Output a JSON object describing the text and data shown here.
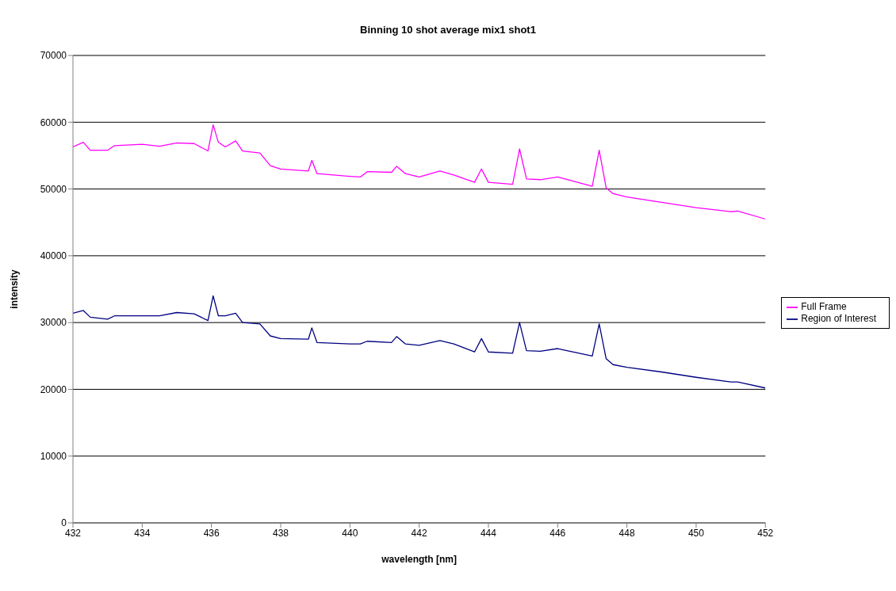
{
  "chart_data": {
    "type": "line",
    "title": "Binning 10 shot average mix1 shot1",
    "xlabel": "wavelength [nm]",
    "ylabel": "intensity",
    "xlim": [
      432,
      452
    ],
    "xticks": [
      432,
      434,
      436,
      438,
      440,
      442,
      444,
      446,
      448,
      450,
      452
    ],
    "ylim": [
      0,
      70000
    ],
    "yticks": [
      0,
      10000,
      20000,
      30000,
      40000,
      50000,
      60000,
      70000
    ],
    "grid": "y",
    "legend": "right",
    "marker": "none",
    "line_style": "solid",
    "x": [
      432.0,
      432.3,
      432.5,
      433.0,
      433.2,
      434.0,
      434.5,
      435.0,
      435.5,
      435.9,
      436.05,
      436.2,
      436.4,
      436.7,
      436.9,
      437.4,
      437.7,
      438.0,
      438.8,
      438.9,
      439.05,
      440.0,
      440.3,
      440.5,
      441.2,
      441.35,
      441.6,
      442.0,
      442.6,
      443.0,
      443.6,
      443.8,
      444.0,
      444.7,
      444.9,
      445.1,
      445.5,
      446.0,
      447.0,
      447.2,
      447.4,
      447.6,
      448.0,
      449.0,
      450.0,
      451.0,
      451.2,
      452.0
    ],
    "series": [
      {
        "name": "Region of Interest",
        "color": "#000080",
        "values": [
          31400,
          31800,
          30800,
          30500,
          31000,
          31000,
          31000,
          31500,
          31300,
          30300,
          34000,
          31000,
          31000,
          31400,
          30000,
          29800,
          28000,
          27600,
          27500,
          29200,
          27000,
          26800,
          26800,
          27200,
          27000,
          27900,
          26800,
          26600,
          27300,
          26800,
          25600,
          27600,
          25600,
          25400,
          30000,
          25800,
          25700,
          26100,
          25000,
          29800,
          24600,
          23700,
          23300,
          22600,
          21800,
          21100,
          21100,
          20200
        ]
      },
      {
        "name": "Full Frame",
        "color": "#ff00ff",
        "values": [
          56300,
          57000,
          55800,
          55800,
          56500,
          56700,
          56400,
          56900,
          56800,
          55700,
          59600,
          57000,
          56300,
          57200,
          55700,
          55400,
          53500,
          53000,
          52700,
          54300,
          52300,
          51900,
          51800,
          52600,
          52500,
          53400,
          52300,
          51800,
          52700,
          52100,
          51000,
          53000,
          51000,
          50700,
          56000,
          51500,
          51400,
          51800,
          50400,
          55800,
          50200,
          49300,
          48800,
          48000,
          47200,
          46600,
          46700,
          45500
        ]
      }
    ]
  }
}
